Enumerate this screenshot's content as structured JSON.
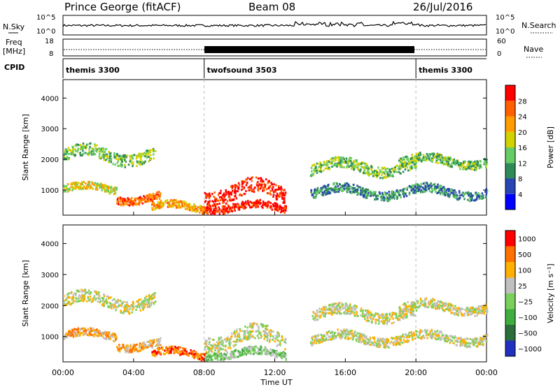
{
  "header": {
    "station": "Prince George (fitACF)",
    "beam": "Beam 08",
    "date": "26/Jul/2016"
  },
  "sky_panel": {
    "left_label": "N.Sky",
    "left_ticks": [
      "10^5",
      "10^0"
    ],
    "right_ticks": [
      "10^5",
      "10^0"
    ],
    "right_label": "N.Search"
  },
  "freq_panel": {
    "label_line1": "Freq",
    "label_line2": "[MHz]",
    "left_ticks": [
      "18",
      "8"
    ],
    "right_ticks": [
      "60",
      "0"
    ],
    "right_label": "Nave"
  },
  "cpid": {
    "label": "CPID",
    "segments": [
      {
        "name": "themis 3300",
        "start": 0,
        "end": 8
      },
      {
        "name": "twofsound 3503",
        "start": 8,
        "end": 20
      },
      {
        "name": "themis 3300",
        "start": 20,
        "end": 24
      }
    ]
  },
  "x_axis": {
    "label": "Time UT",
    "ticks": [
      "00:00",
      "04:00",
      "08:00",
      "12:00",
      "16:00",
      "20:00",
      "00:00"
    ],
    "range_hours": [
      0,
      24
    ]
  },
  "power_panel": {
    "ylabel": "Slant Range [km]",
    "yticks": [
      "1000",
      "2000",
      "3000",
      "4000"
    ],
    "ylim": [
      180,
      4600
    ],
    "colorbar_label": "Power [dB]",
    "colorbar_ticks": [
      "4",
      "8",
      "12",
      "16",
      "20",
      "24",
      "28"
    ],
    "colors": [
      "#0000ff",
      "#2845b4",
      "#2e8b57",
      "#66cd66",
      "#d2d200",
      "#ff9c00",
      "#ff6000",
      "#ff0000"
    ]
  },
  "velocity_panel": {
    "ylabel": "Slant Range [km]",
    "yticks": [
      "1000",
      "2000",
      "3000",
      "4000"
    ],
    "ylim": [
      180,
      4600
    ],
    "colorbar_label": "Velocity [m s⁻¹]",
    "colorbar_ticks": [
      "1000",
      "500",
      "100",
      "25",
      "−25",
      "−100",
      "−500",
      "−1000"
    ],
    "colors": [
      "#2030c0",
      "#2a6e3c",
      "#3fae3f",
      "#7ad05a",
      "#c0c0c0",
      "#ffb000",
      "#ff7000",
      "#ff0000"
    ]
  },
  "chart_data": {
    "type": "heatmap",
    "title": "Prince George (fitACF)",
    "xlabel": "Time UT",
    "ylabel": "Slant Range [km]",
    "xlim": [
      0,
      24
    ],
    "ylim": [
      180,
      4600
    ],
    "scatter_regions_power": [
      {
        "t": [
          0,
          5.2
        ],
        "r_center": 2100,
        "r_width": 400,
        "level": 3
      },
      {
        "t": [
          0,
          3
        ],
        "r_center": 1000,
        "r_width": 250,
        "level": 4
      },
      {
        "t": [
          3,
          5.5
        ],
        "r_center": 700,
        "r_width": 250,
        "level": 6
      },
      {
        "t": [
          5,
          8
        ],
        "r_center": 400,
        "r_width": 250,
        "level": 5
      },
      {
        "t": [
          8,
          12.6
        ],
        "r_center": 900,
        "r_width": 500,
        "level": 7
      },
      {
        "t": [
          8,
          12.6
        ],
        "r_center": 400,
        "r_width": 250,
        "level": 7
      },
      {
        "t": [
          14,
          20
        ],
        "r_center": 1700,
        "r_width": 350,
        "level": 3
      },
      {
        "t": [
          14,
          24
        ],
        "r_center": 900,
        "r_width": 300,
        "level": 2
      },
      {
        "t": [
          19,
          24
        ],
        "r_center": 1900,
        "r_width": 300,
        "level": 3
      }
    ],
    "scatter_regions_velocity": [
      {
        "t": [
          0,
          5.2
        ],
        "r_center": 2100,
        "r_width": 400,
        "level": 4
      },
      {
        "t": [
          0,
          3
        ],
        "r_center": 1000,
        "r_width": 250,
        "level": 5
      },
      {
        "t": [
          3,
          5.5
        ],
        "r_center": 700,
        "r_width": 250,
        "level": 5
      },
      {
        "t": [
          5,
          8
        ],
        "r_center": 400,
        "r_width": 250,
        "level": 6
      },
      {
        "t": [
          8,
          12.6
        ],
        "r_center": 900,
        "r_width": 500,
        "level": 4
      },
      {
        "t": [
          8,
          12.6
        ],
        "r_center": 400,
        "r_width": 250,
        "level": 3
      },
      {
        "t": [
          14,
          20
        ],
        "r_center": 1700,
        "r_width": 350,
        "level": 4
      },
      {
        "t": [
          14,
          24
        ],
        "r_center": 900,
        "r_width": 300,
        "level": 4
      },
      {
        "t": [
          19,
          24
        ],
        "r_center": 1900,
        "r_width": 300,
        "level": 4
      }
    ]
  }
}
